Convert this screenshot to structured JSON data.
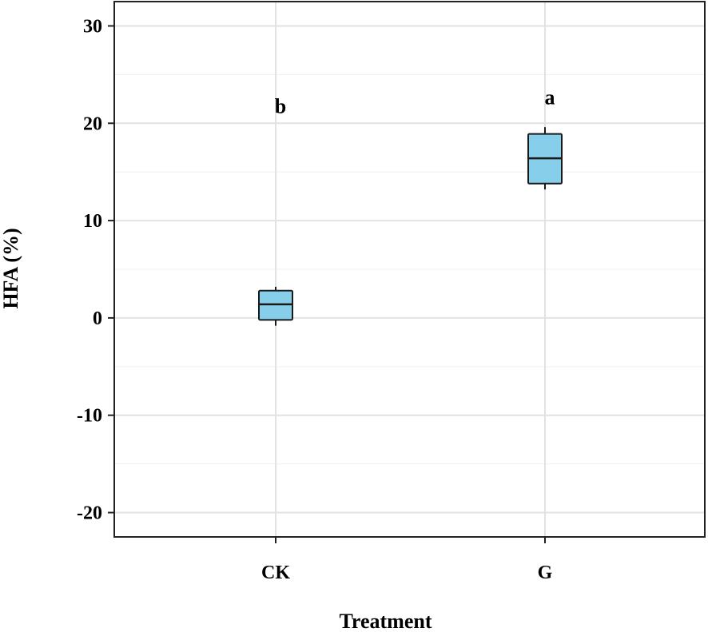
{
  "chart_data": {
    "type": "boxplot",
    "title": "",
    "xlabel": "Treatment",
    "ylabel": "HFA (%)",
    "ylim": [
      -22.5,
      32.5
    ],
    "yticks": [
      -20,
      -10,
      0,
      10,
      20,
      30
    ],
    "ytick_labels": [
      "-20",
      "-10",
      "0",
      "10",
      "20",
      "30"
    ],
    "minor_gridlines": [
      -15,
      -5,
      5,
      15,
      25
    ],
    "grid": true,
    "categories": [
      "CK",
      "G"
    ],
    "boxes": [
      {
        "category": "CK",
        "whisker_low": -0.8,
        "q1": -0.2,
        "median": 1.4,
        "q3": 2.8,
        "whisker_high": 3.2,
        "significance": "b",
        "significance_y": 21.8
      },
      {
        "category": "G",
        "whisker_low": 13.2,
        "q1": 13.8,
        "median": 16.4,
        "q3": 18.9,
        "whisker_high": 19.6,
        "significance": "a",
        "significance_y": 22.7
      }
    ],
    "box_color": "#87ceeb",
    "edge_color": "#1a1a1a"
  }
}
